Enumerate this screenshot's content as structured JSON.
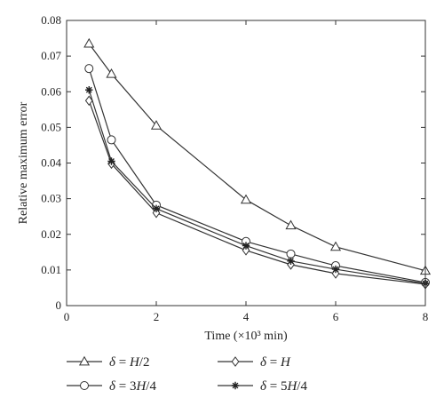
{
  "chart_data": {
    "type": "line",
    "xlabel": "Time (×10³ min)",
    "ylabel": "Relative maximum error",
    "xlim": [
      0,
      8
    ],
    "ylim": [
      0,
      0.08
    ],
    "xticks": [
      "0",
      "2",
      "4",
      "6",
      "8"
    ],
    "yticks": [
      "0",
      "0.01",
      "0.02",
      "0.03",
      "0.04",
      "0.05",
      "0.06",
      "0.07",
      "0.08"
    ],
    "grid": false,
    "legend_position": "bottom",
    "series": [
      {
        "name_parts": [
          "δ",
          " = ",
          "H",
          "/2"
        ],
        "marker": "triangle",
        "x": [
          0.5,
          1,
          2,
          4,
          5,
          6,
          8
        ],
        "y": [
          0.0735,
          0.065,
          0.0505,
          0.0297,
          0.0225,
          0.0165,
          0.0098
        ]
      },
      {
        "name_parts": [
          "δ",
          " = 3",
          "H",
          "/4"
        ],
        "marker": "circle",
        "x": [
          0.5,
          1,
          2,
          4,
          5,
          6,
          8
        ],
        "y": [
          0.0665,
          0.0465,
          0.0282,
          0.018,
          0.0145,
          0.0112,
          0.0065
        ]
      },
      {
        "name_parts": [
          "δ",
          " = ",
          "H",
          ""
        ],
        "marker": "diamond",
        "x": [
          0.5,
          1,
          2,
          4,
          5,
          6,
          8
        ],
        "y": [
          0.0575,
          0.0398,
          0.026,
          0.0155,
          0.0115,
          0.009,
          0.006
        ]
      },
      {
        "name_parts": [
          "δ",
          " = 5",
          "H",
          "/4"
        ],
        "marker": "star",
        "x": [
          0.5,
          1,
          2,
          4,
          5,
          6,
          8
        ],
        "y": [
          0.0605,
          0.0405,
          0.0272,
          0.0168,
          0.0125,
          0.0102,
          0.0062
        ]
      }
    ]
  }
}
